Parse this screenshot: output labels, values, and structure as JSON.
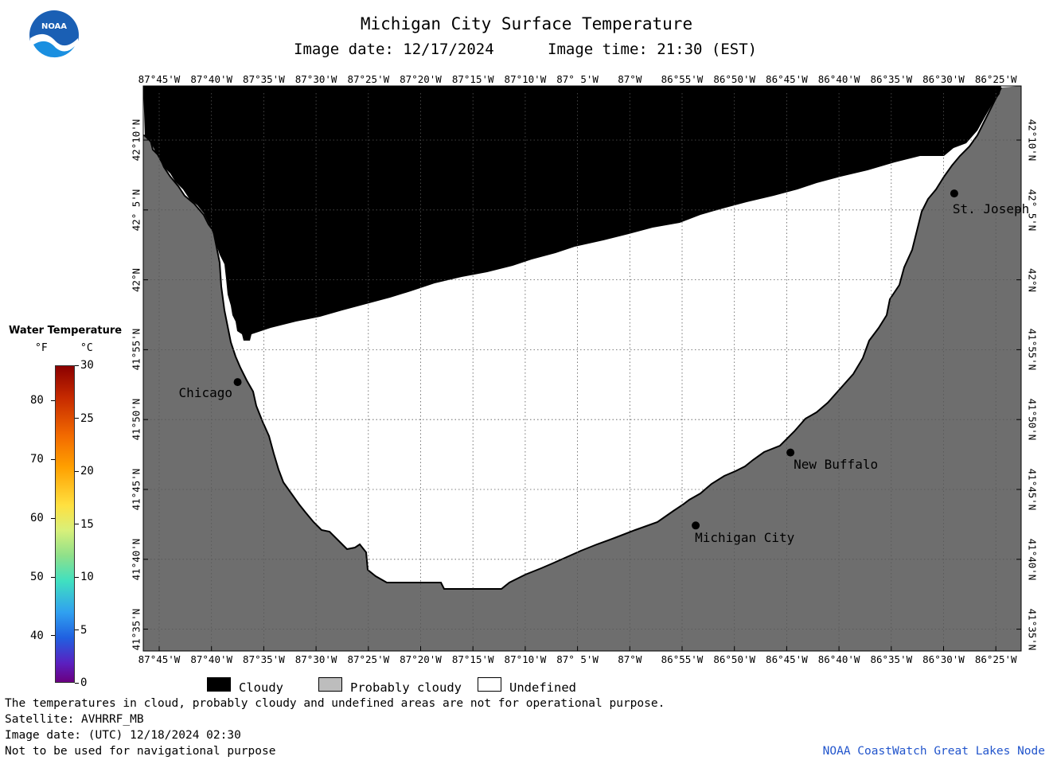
{
  "header": {
    "title": "Michigan City Surface Temperature",
    "image_date": "Image date: 12/17/2024",
    "image_time": "Image time: 21:30 (EST)"
  },
  "logo": {
    "text": "NOAA",
    "icon": "noaa-logo"
  },
  "lon_ticks": [
    "87°45'W",
    "87°40'W",
    "87°35'W",
    "87°30'W",
    "87°25'W",
    "87°20'W",
    "87°15'W",
    "87°10'W",
    "87° 5'W",
    "87°W",
    "86°55'W",
    "86°50'W",
    "86°45'W",
    "86°40'W",
    "86°35'W",
    "86°30'W",
    "86°25'W"
  ],
  "lat_ticks": [
    "42°10'N",
    "42° 5'N",
    "42°N",
    "41°55'N",
    "41°50'N",
    "41°45'N",
    "41°40'N",
    "41°35'N"
  ],
  "cities": [
    {
      "name": "St. Joseph",
      "lon": -86.483,
      "lat": 42.103
    },
    {
      "name": "Chicago",
      "lon": -87.625,
      "lat": 41.878
    },
    {
      "name": "New Buffalo",
      "lon": -86.744,
      "lat": 41.794
    },
    {
      "name": "Michigan City",
      "lon": -86.895,
      "lat": 41.707
    }
  ],
  "scale": {
    "title": "Water Temperature",
    "unit_f": "°F",
    "unit_c": "°C",
    "f_ticks": [
      "80",
      "70",
      "60",
      "50",
      "40"
    ],
    "c_ticks": [
      "30",
      "25",
      "20",
      "15",
      "10",
      "5",
      "0"
    ]
  },
  "legend": [
    {
      "label": "Cloudy",
      "color": "#000000"
    },
    {
      "label": "Probably cloudy",
      "color": "#bdbdbd"
    },
    {
      "label": "Undefined",
      "color": "#ffffff"
    }
  ],
  "colors": {
    "land": "#6e6e6e",
    "cloud": "#000000",
    "undefined": "#ffffff",
    "credit": "#2255cc"
  },
  "footer": {
    "note": "The temperatures in cloud, probably cloudy and undefined areas are not for operational purpose.",
    "satellite": "Satellite: AVHRRF_MB",
    "utc_date": "Image date: (UTC) 12/18/2024  02:30",
    "disclaimer": "Not to be used for navigational purpose",
    "credit": "NOAA CoastWatch Great Lakes Node"
  }
}
